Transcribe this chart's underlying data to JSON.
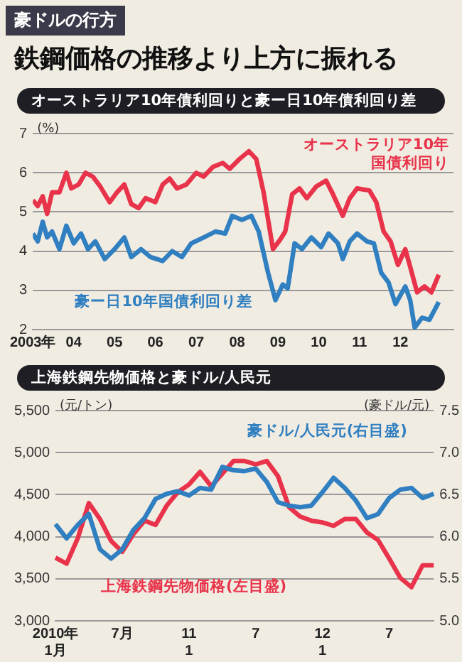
{
  "chart_data": [
    {
      "type": "other",
      "title": "鉄鋼価格の推移より上方に振れる",
      "annotations": [
        "豪ドルの行方"
      ]
    },
    {
      "type": "line",
      "title": "オーストラリア10年債利回りと豪ー日10年債利回り差",
      "ylabel": "(%)",
      "marker": "none",
      "grid": "y",
      "xlim": [
        2003,
        2013.3
      ],
      "xticks": [
        {
          "value": 2003,
          "label": "2003年"
        },
        {
          "value": 2004,
          "label": "04"
        },
        {
          "value": 2005,
          "label": "05"
        },
        {
          "value": 2006,
          "label": "06"
        },
        {
          "value": 2007,
          "label": "07"
        },
        {
          "value": 2008,
          "label": "08"
        },
        {
          "value": 2009,
          "label": "09"
        },
        {
          "value": 2010,
          "label": "10"
        },
        {
          "value": 2011,
          "label": "11"
        },
        {
          "value": 2012,
          "label": "12"
        }
      ],
      "ylim": [
        2,
        7
      ],
      "yticks": [
        2,
        3,
        4,
        5,
        6,
        7
      ],
      "series": [
        {
          "name": "オーストラリア10年国債利回り",
          "color": "#e8334a",
          "x": [
            2003.0,
            2003.12,
            2003.24,
            2003.35,
            2003.47,
            2003.65,
            2003.82,
            2003.94,
            2004.12,
            2004.29,
            2004.47,
            2004.65,
            2004.88,
            2005.06,
            2005.24,
            2005.41,
            2005.59,
            2005.76,
            2006.0,
            2006.18,
            2006.35,
            2006.53,
            2006.76,
            2007.0,
            2007.18,
            2007.41,
            2007.65,
            2007.82,
            2008.06,
            2008.29,
            2008.47,
            2008.65,
            2008.88,
            2009.06,
            2009.18,
            2009.35,
            2009.53,
            2009.71,
            2009.94,
            2010.18,
            2010.35,
            2010.59,
            2010.76,
            2010.94,
            2011.24,
            2011.41,
            2011.59,
            2011.76,
            2011.94,
            2012.12,
            2012.24,
            2012.41,
            2012.59,
            2012.76,
            2012.94
          ],
          "values": [
            5.3,
            5.15,
            5.4,
            4.95,
            5.5,
            5.5,
            6.0,
            5.6,
            5.7,
            6.0,
            5.9,
            5.65,
            5.25,
            5.5,
            5.7,
            5.2,
            5.1,
            5.35,
            5.25,
            5.7,
            5.85,
            5.6,
            5.7,
            6.0,
            5.9,
            6.15,
            6.25,
            6.1,
            6.35,
            6.55,
            6.35,
            5.5,
            4.05,
            4.3,
            4.5,
            5.45,
            5.6,
            5.35,
            5.65,
            5.8,
            5.45,
            4.9,
            5.35,
            5.6,
            5.55,
            5.25,
            4.5,
            4.25,
            3.65,
            4.05,
            3.6,
            2.95,
            3.1,
            2.95,
            3.4
          ]
        },
        {
          "name": "豪ー日10年国債利回り差",
          "color": "#2f7fc1",
          "x": [
            2003.0,
            2003.12,
            2003.24,
            2003.35,
            2003.47,
            2003.65,
            2003.82,
            2004.0,
            2004.18,
            2004.35,
            2004.53,
            2004.76,
            2005.0,
            2005.24,
            2005.41,
            2005.65,
            2005.88,
            2006.18,
            2006.41,
            2006.65,
            2006.88,
            2007.18,
            2007.47,
            2007.71,
            2007.88,
            2008.12,
            2008.35,
            2008.53,
            2008.76,
            2008.94,
            2009.12,
            2009.24,
            2009.41,
            2009.59,
            2009.82,
            2010.06,
            2010.24,
            2010.47,
            2010.59,
            2010.76,
            2010.94,
            2011.18,
            2011.35,
            2011.53,
            2011.71,
            2011.88,
            2012.12,
            2012.24,
            2012.35,
            2012.53,
            2012.71,
            2012.94
          ],
          "values": [
            4.45,
            4.25,
            4.75,
            4.35,
            4.5,
            4.05,
            4.65,
            4.2,
            4.45,
            4.05,
            4.25,
            3.8,
            4.05,
            4.35,
            3.85,
            4.05,
            3.85,
            3.75,
            4.0,
            3.85,
            4.2,
            4.35,
            4.5,
            4.45,
            4.9,
            4.8,
            4.9,
            4.5,
            3.45,
            2.75,
            3.15,
            3.05,
            4.2,
            4.05,
            4.35,
            4.1,
            4.45,
            4.2,
            3.8,
            4.25,
            4.45,
            4.25,
            4.2,
            3.45,
            3.2,
            2.65,
            3.1,
            2.75,
            2.05,
            2.3,
            2.25,
            2.7
          ]
        }
      ]
    },
    {
      "type": "line",
      "title": "上海鉄鋼先物価格と豪ドル/人民元",
      "ylabel": "(元/トン)",
      "y2label": "(豪ドル/元)",
      "marker": "none",
      "grid": "y",
      "categories": [
        "2010年\n1月",
        null,
        null,
        null,
        null,
        null,
        "7月",
        null,
        null,
        null,
        null,
        null,
        "11\n1",
        null,
        null,
        null,
        null,
        null,
        "7",
        null,
        null,
        null,
        null,
        null,
        "12\n1",
        null,
        null,
        null,
        null,
        null,
        "7",
        null,
        null,
        null,
        null
      ],
      "ylim": [
        3000,
        5500
      ],
      "yticks": [
        {
          "value": 3000,
          "label": "3,000"
        },
        {
          "value": 3500,
          "label": "3,500"
        },
        {
          "value": 4000,
          "label": "4,000"
        },
        {
          "value": 4500,
          "label": "4,500"
        },
        {
          "value": 5000,
          "label": "5,000"
        },
        {
          "value": 5500,
          "label": "5,500"
        }
      ],
      "y2lim": [
        5.0,
        7.5
      ],
      "y2ticks": [
        {
          "value": 5,
          "label": "5.0"
        },
        5.5,
        {
          "value": 6,
          "label": "6.0"
        },
        6.5,
        {
          "value": 7,
          "label": "7.0"
        },
        7.5
      ],
      "series": [
        {
          "name": "豪ドル/人民元(右目盛)",
          "color": "#2f7fc1",
          "axis": "y2",
          "values": [
            6.15,
            5.98,
            6.14,
            6.27,
            5.85,
            5.74,
            5.85,
            6.08,
            6.22,
            6.45,
            6.51,
            6.54,
            6.49,
            6.58,
            6.56,
            6.83,
            6.79,
            6.78,
            6.81,
            6.65,
            6.41,
            6.37,
            6.35,
            6.37,
            6.53,
            6.7,
            6.58,
            6.43,
            6.22,
            6.27,
            6.46,
            6.56,
            6.58,
            6.46,
            6.51
          ]
        },
        {
          "name": "上海鉄鋼先物価格(左目盛)",
          "color": "#e8334a",
          "values": [
            3750,
            3680,
            3980,
            4400,
            4210,
            3950,
            3820,
            4030,
            4190,
            4140,
            4370,
            4530,
            4620,
            4770,
            4600,
            4750,
            4900,
            4900,
            4860,
            4900,
            4720,
            4350,
            4240,
            4190,
            4170,
            4130,
            4210,
            4210,
            4050,
            3960,
            3740,
            3510,
            3400,
            3660,
            3660
          ]
        }
      ]
    }
  ]
}
